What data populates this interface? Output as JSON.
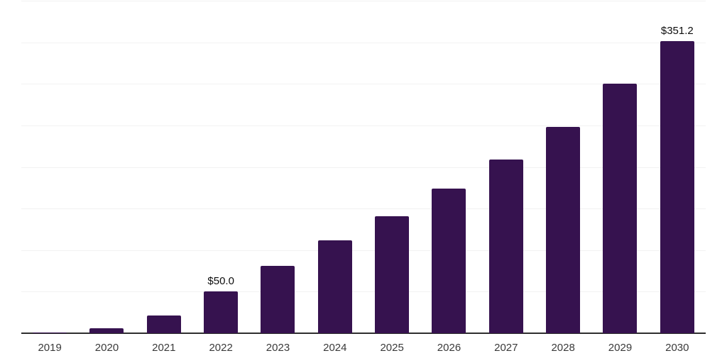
{
  "chart_data": {
    "type": "bar",
    "title": "",
    "xlabel": "",
    "ylabel": "",
    "categories": [
      "2019",
      "2020",
      "2021",
      "2022",
      "2023",
      "2024",
      "2025",
      "2026",
      "2027",
      "2028",
      "2029",
      "2030"
    ],
    "values": [
      1,
      6,
      21,
      50.0,
      81,
      112,
      141,
      174,
      209,
      248,
      300,
      351.2
    ],
    "data_labels": [
      "",
      "",
      "",
      "$50.0",
      "",
      "",
      "",
      "",
      "",
      "",
      "",
      "$351.2"
    ],
    "ylim": [
      0,
      400
    ],
    "grid_interval": 50,
    "grid": "horizontal",
    "legend": "none",
    "y_tick_labels_visible": false
  },
  "colors": {
    "bar": "#36124F",
    "gridline": "#f2f2f2",
    "axis": "#2e2e2e",
    "tick_label": "#3a3a3a",
    "data_label": "#0d0d0d",
    "background": "#ffffff"
  }
}
